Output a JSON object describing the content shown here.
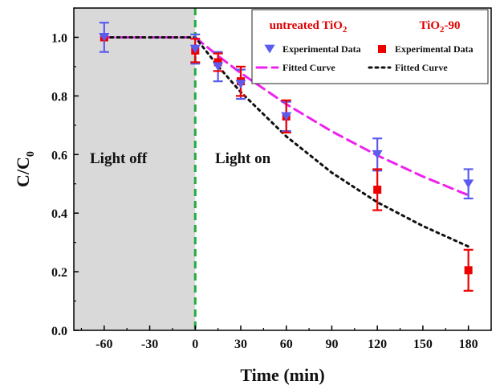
{
  "chart_data": {
    "type": "scatter",
    "xlabel": "Time (min)",
    "ylabel": {
      "main": "C/C",
      "sub": "0"
    },
    "xlim": [
      -80,
      195
    ],
    "ylim": [
      0,
      1.1
    ],
    "xticks": [
      "-60",
      "-30",
      "0",
      "30",
      "60",
      "90",
      "120",
      "150",
      "180"
    ],
    "yticks": [
      "0.0",
      "0.2",
      "0.4",
      "0.6",
      "0.8",
      "1.0"
    ],
    "dark_region": {
      "from": -80,
      "to": 0,
      "label": "Light off"
    },
    "light_region_label": "Light on",
    "legend": {
      "placement": "top-right",
      "groups": [
        {
          "title_main": "untreated TiO",
          "title_sub": "2",
          "title_tail": "",
          "marker_label": "Experimental Data",
          "line_label": "Fitted Curve"
        },
        {
          "title_main": "TiO",
          "title_sub": "2",
          "title_tail": "-90",
          "marker_label": "Experimental Data",
          "line_label": "Fitted Curve"
        }
      ]
    },
    "series": [
      {
        "name": "untreated TiO2",
        "marker": "triangle-down",
        "color": "#5b5bf0",
        "x": [
          -60,
          0,
          15,
          30,
          60,
          120,
          180
        ],
        "y": [
          1.0,
          0.96,
          0.9,
          0.84,
          0.73,
          0.6,
          0.5
        ],
        "err": [
          0.05,
          0.05,
          0.05,
          0.05,
          0.05,
          0.055,
          0.05
        ],
        "fit": {
          "style": "dashed",
          "color": "#ee22ee",
          "x": [
            -60,
            0,
            15,
            30,
            60,
            90,
            120,
            150,
            180
          ],
          "y": [
            1.0,
            1.0,
            0.937,
            0.878,
            0.772,
            0.679,
            0.597,
            0.525,
            0.461
          ]
        }
      },
      {
        "name": "TiO2-90",
        "marker": "square",
        "color": "#ee0000",
        "x": [
          -60,
          0,
          15,
          30,
          60,
          120,
          180
        ],
        "y": [
          1.0,
          0.955,
          0.915,
          0.85,
          0.73,
          0.48,
          0.205
        ],
        "err": [
          0.0,
          0.04,
          0.03,
          0.05,
          0.055,
          0.07,
          0.07
        ],
        "fit": {
          "style": "dotted",
          "color": "#111111",
          "x": [
            -60,
            0,
            15,
            30,
            60,
            90,
            120,
            150,
            180
          ],
          "y": [
            1.0,
            1.0,
            0.902,
            0.813,
            0.662,
            0.538,
            0.437,
            0.356,
            0.286
          ]
        }
      }
    ]
  }
}
